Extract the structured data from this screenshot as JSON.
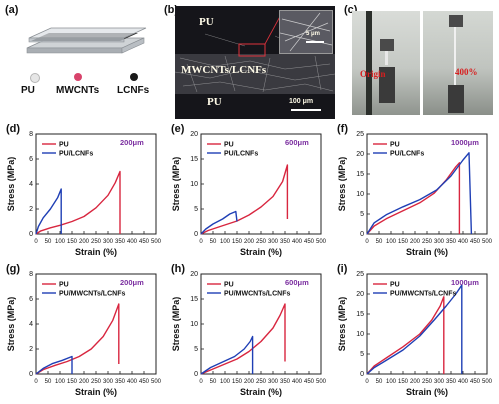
{
  "top": {
    "a": {
      "tag": "(a)",
      "materials": [
        {
          "label": "PU",
          "color": "#e6e6e6"
        },
        {
          "label": "MWCNTs",
          "color": "#d8436b"
        },
        {
          "label": "LCNFs",
          "color": "#1a1a1a"
        }
      ]
    },
    "b": {
      "tag": "(b)",
      "region_top": "PU",
      "region_mid": "MWCNTs/LCNFs",
      "region_bottom": "PU",
      "inset_scale": "5 μm",
      "scale": "100 μm"
    },
    "c": {
      "tag": "(c)",
      "label_origin": "Origin",
      "label_strain": "400%"
    }
  },
  "colors": {
    "pu": "#d8263f",
    "composite": "#1f3fb5",
    "thickness": "#7b2ea0"
  },
  "chart_data": [
    {
      "tag": "(d)",
      "type": "line",
      "thickness": "200μm",
      "xlabel": "Strain (%)",
      "ylabel": "Stress (MPa)",
      "xlim": [
        0,
        500
      ],
      "ylim": [
        0,
        8
      ],
      "xticks": [
        0,
        50,
        100,
        150,
        200,
        250,
        300,
        350,
        400,
        450,
        500
      ],
      "yticks": [
        0,
        2,
        4,
        6,
        8
      ],
      "series": [
        {
          "name": "PU",
          "color": "#d8263f",
          "points": [
            [
              0,
              0
            ],
            [
              20,
              0.25
            ],
            [
              60,
              0.5
            ],
            [
              100,
              0.7
            ],
            [
              150,
              1.0
            ],
            [
              200,
              1.4
            ],
            [
              250,
              2.1
            ],
            [
              300,
              3.1
            ],
            [
              330,
              4.1
            ],
            [
              350,
              5.0
            ],
            [
              350,
              0
            ]
          ]
        },
        {
          "name": "PU/LCNFs",
          "color": "#1f3fb5",
          "points": [
            [
              0,
              0
            ],
            [
              10,
              0.6
            ],
            [
              30,
              1.3
            ],
            [
              60,
              2.0
            ],
            [
              90,
              2.9
            ],
            [
              105,
              3.6
            ],
            [
              105,
              0
            ]
          ]
        }
      ]
    },
    {
      "tag": "(e)",
      "type": "line",
      "thickness": "600μm",
      "xlabel": "Strain (%)",
      "ylabel": "Stress (MPa)",
      "xlim": [
        0,
        500
      ],
      "ylim": [
        0,
        20
      ],
      "xticks": [
        0,
        50,
        100,
        150,
        200,
        250,
        300,
        350,
        400,
        450,
        500
      ],
      "yticks": [
        0,
        5,
        10,
        15,
        20
      ],
      "series": [
        {
          "name": "PU",
          "color": "#d8263f",
          "points": [
            [
              0,
              0
            ],
            [
              30,
              0.7
            ],
            [
              80,
              1.5
            ],
            [
              150,
              2.6
            ],
            [
              200,
              3.8
            ],
            [
              250,
              5.4
            ],
            [
              300,
              7.5
            ],
            [
              340,
              10.5
            ],
            [
              360,
              13.8
            ],
            [
              360,
              3
            ]
          ]
        },
        {
          "name": "PU/LCNFs",
          "color": "#1f3fb5",
          "points": [
            [
              0,
              0
            ],
            [
              20,
              1.0
            ],
            [
              50,
              2.0
            ],
            [
              90,
              3.0
            ],
            [
              120,
              4.0
            ],
            [
              145,
              4.5
            ],
            [
              150,
              2.5
            ]
          ]
        }
      ]
    },
    {
      "tag": "(f)",
      "type": "line",
      "thickness": "1000μm",
      "xlabel": "Strain (%)",
      "ylabel": "Stress (MPa)",
      "xlim": [
        0,
        500
      ],
      "ylim": [
        0,
        25
      ],
      "xticks": [
        0,
        50,
        100,
        150,
        200,
        250,
        300,
        350,
        400,
        450,
        500
      ],
      "yticks": [
        0,
        5,
        10,
        15,
        20,
        25
      ],
      "series": [
        {
          "name": "PU",
          "color": "#d8263f",
          "points": [
            [
              0,
              0
            ],
            [
              30,
              2.0
            ],
            [
              80,
              3.8
            ],
            [
              150,
              5.8
            ],
            [
              220,
              7.8
            ],
            [
              280,
              10.2
            ],
            [
              330,
              13.5
            ],
            [
              370,
              16.8
            ],
            [
              385,
              17.8
            ],
            [
              385,
              0
            ]
          ]
        },
        {
          "name": "PU/LCNFs",
          "color": "#1f3fb5",
          "points": [
            [
              0,
              0
            ],
            [
              30,
              2.8
            ],
            [
              80,
              4.8
            ],
            [
              150,
              6.8
            ],
            [
              220,
              8.6
            ],
            [
              290,
              11.0
            ],
            [
              350,
              14.5
            ],
            [
              400,
              18.5
            ],
            [
              425,
              20.3
            ],
            [
              435,
              0
            ]
          ]
        }
      ]
    },
    {
      "tag": "(g)",
      "type": "line",
      "thickness": "200μm",
      "xlabel": "Strain (%)",
      "ylabel": "Stress (MPa)",
      "xlim": [
        0,
        500
      ],
      "ylim": [
        0,
        8
      ],
      "xticks": [
        0,
        50,
        100,
        150,
        200,
        250,
        300,
        350,
        400,
        450,
        500
      ],
      "yticks": [
        0,
        2,
        4,
        6,
        8
      ],
      "series": [
        {
          "name": "PU",
          "color": "#d8263f",
          "points": [
            [
              0,
              0
            ],
            [
              30,
              0.35
            ],
            [
              80,
              0.7
            ],
            [
              130,
              1.0
            ],
            [
              180,
              1.4
            ],
            [
              230,
              2.0
            ],
            [
              280,
              3.0
            ],
            [
              320,
              4.3
            ],
            [
              345,
              5.6
            ],
            [
              345,
              0.8
            ]
          ]
        },
        {
          "name": "PU/MWCNTs/LCNFs",
          "color": "#1f3fb5",
          "points": [
            [
              0,
              0
            ],
            [
              30,
              0.45
            ],
            [
              70,
              0.85
            ],
            [
              110,
              1.1
            ],
            [
              150,
              1.4
            ],
            [
              150,
              0
            ]
          ]
        }
      ]
    },
    {
      "tag": "(h)",
      "type": "line",
      "thickness": "600μm",
      "xlabel": "Strain (%)",
      "ylabel": "Stress (MPa)",
      "xlim": [
        0,
        500
      ],
      "ylim": [
        0,
        20
      ],
      "xticks": [
        0,
        50,
        100,
        150,
        200,
        250,
        300,
        350,
        400,
        450,
        500
      ],
      "yticks": [
        0,
        5,
        10,
        15,
        20
      ],
      "series": [
        {
          "name": "PU",
          "color": "#d8263f",
          "points": [
            [
              0,
              0
            ],
            [
              40,
              0.8
            ],
            [
              100,
              2.0
            ],
            [
              150,
              3.0
            ],
            [
              200,
              4.5
            ],
            [
              250,
              6.5
            ],
            [
              300,
              9.2
            ],
            [
              330,
              11.8
            ],
            [
              350,
              14.0
            ],
            [
              350,
              2.5
            ]
          ]
        },
        {
          "name": "PU/MWCNTs/LCNFs",
          "color": "#1f3fb5",
          "points": [
            [
              0,
              0
            ],
            [
              40,
              1.3
            ],
            [
              90,
              2.4
            ],
            [
              140,
              3.5
            ],
            [
              180,
              5.0
            ],
            [
              205,
              6.5
            ],
            [
              215,
              7.5
            ],
            [
              215,
              0
            ]
          ]
        }
      ]
    },
    {
      "tag": "(i)",
      "type": "line",
      "thickness": "1000μm",
      "xlabel": "Strain (%)",
      "ylabel": "Stress (MPa)",
      "xlim": [
        0,
        500
      ],
      "ylim": [
        0,
        25
      ],
      "xticks": [
        0,
        50,
        100,
        150,
        200,
        250,
        300,
        350,
        400,
        450,
        500
      ],
      "yticks": [
        0,
        5,
        10,
        15,
        20,
        25
      ],
      "series": [
        {
          "name": "PU",
          "color": "#d8263f",
          "points": [
            [
              0,
              0
            ],
            [
              30,
              2.0
            ],
            [
              80,
              4.0
            ],
            [
              150,
              6.8
            ],
            [
              220,
              10.0
            ],
            [
              270,
              13.5
            ],
            [
              305,
              17.0
            ],
            [
              320,
              19.3
            ],
            [
              320,
              0
            ]
          ]
        },
        {
          "name": "PU/MWCNTs/LCNFs",
          "color": "#1f3fb5",
          "points": [
            [
              0,
              0
            ],
            [
              30,
              1.6
            ],
            [
              80,
              3.4
            ],
            [
              150,
              6.0
            ],
            [
              220,
              9.5
            ],
            [
              280,
              13.5
            ],
            [
              330,
              17.0
            ],
            [
              370,
              20.0
            ],
            [
              395,
              22.2
            ],
            [
              395,
              0
            ]
          ]
        }
      ]
    }
  ]
}
